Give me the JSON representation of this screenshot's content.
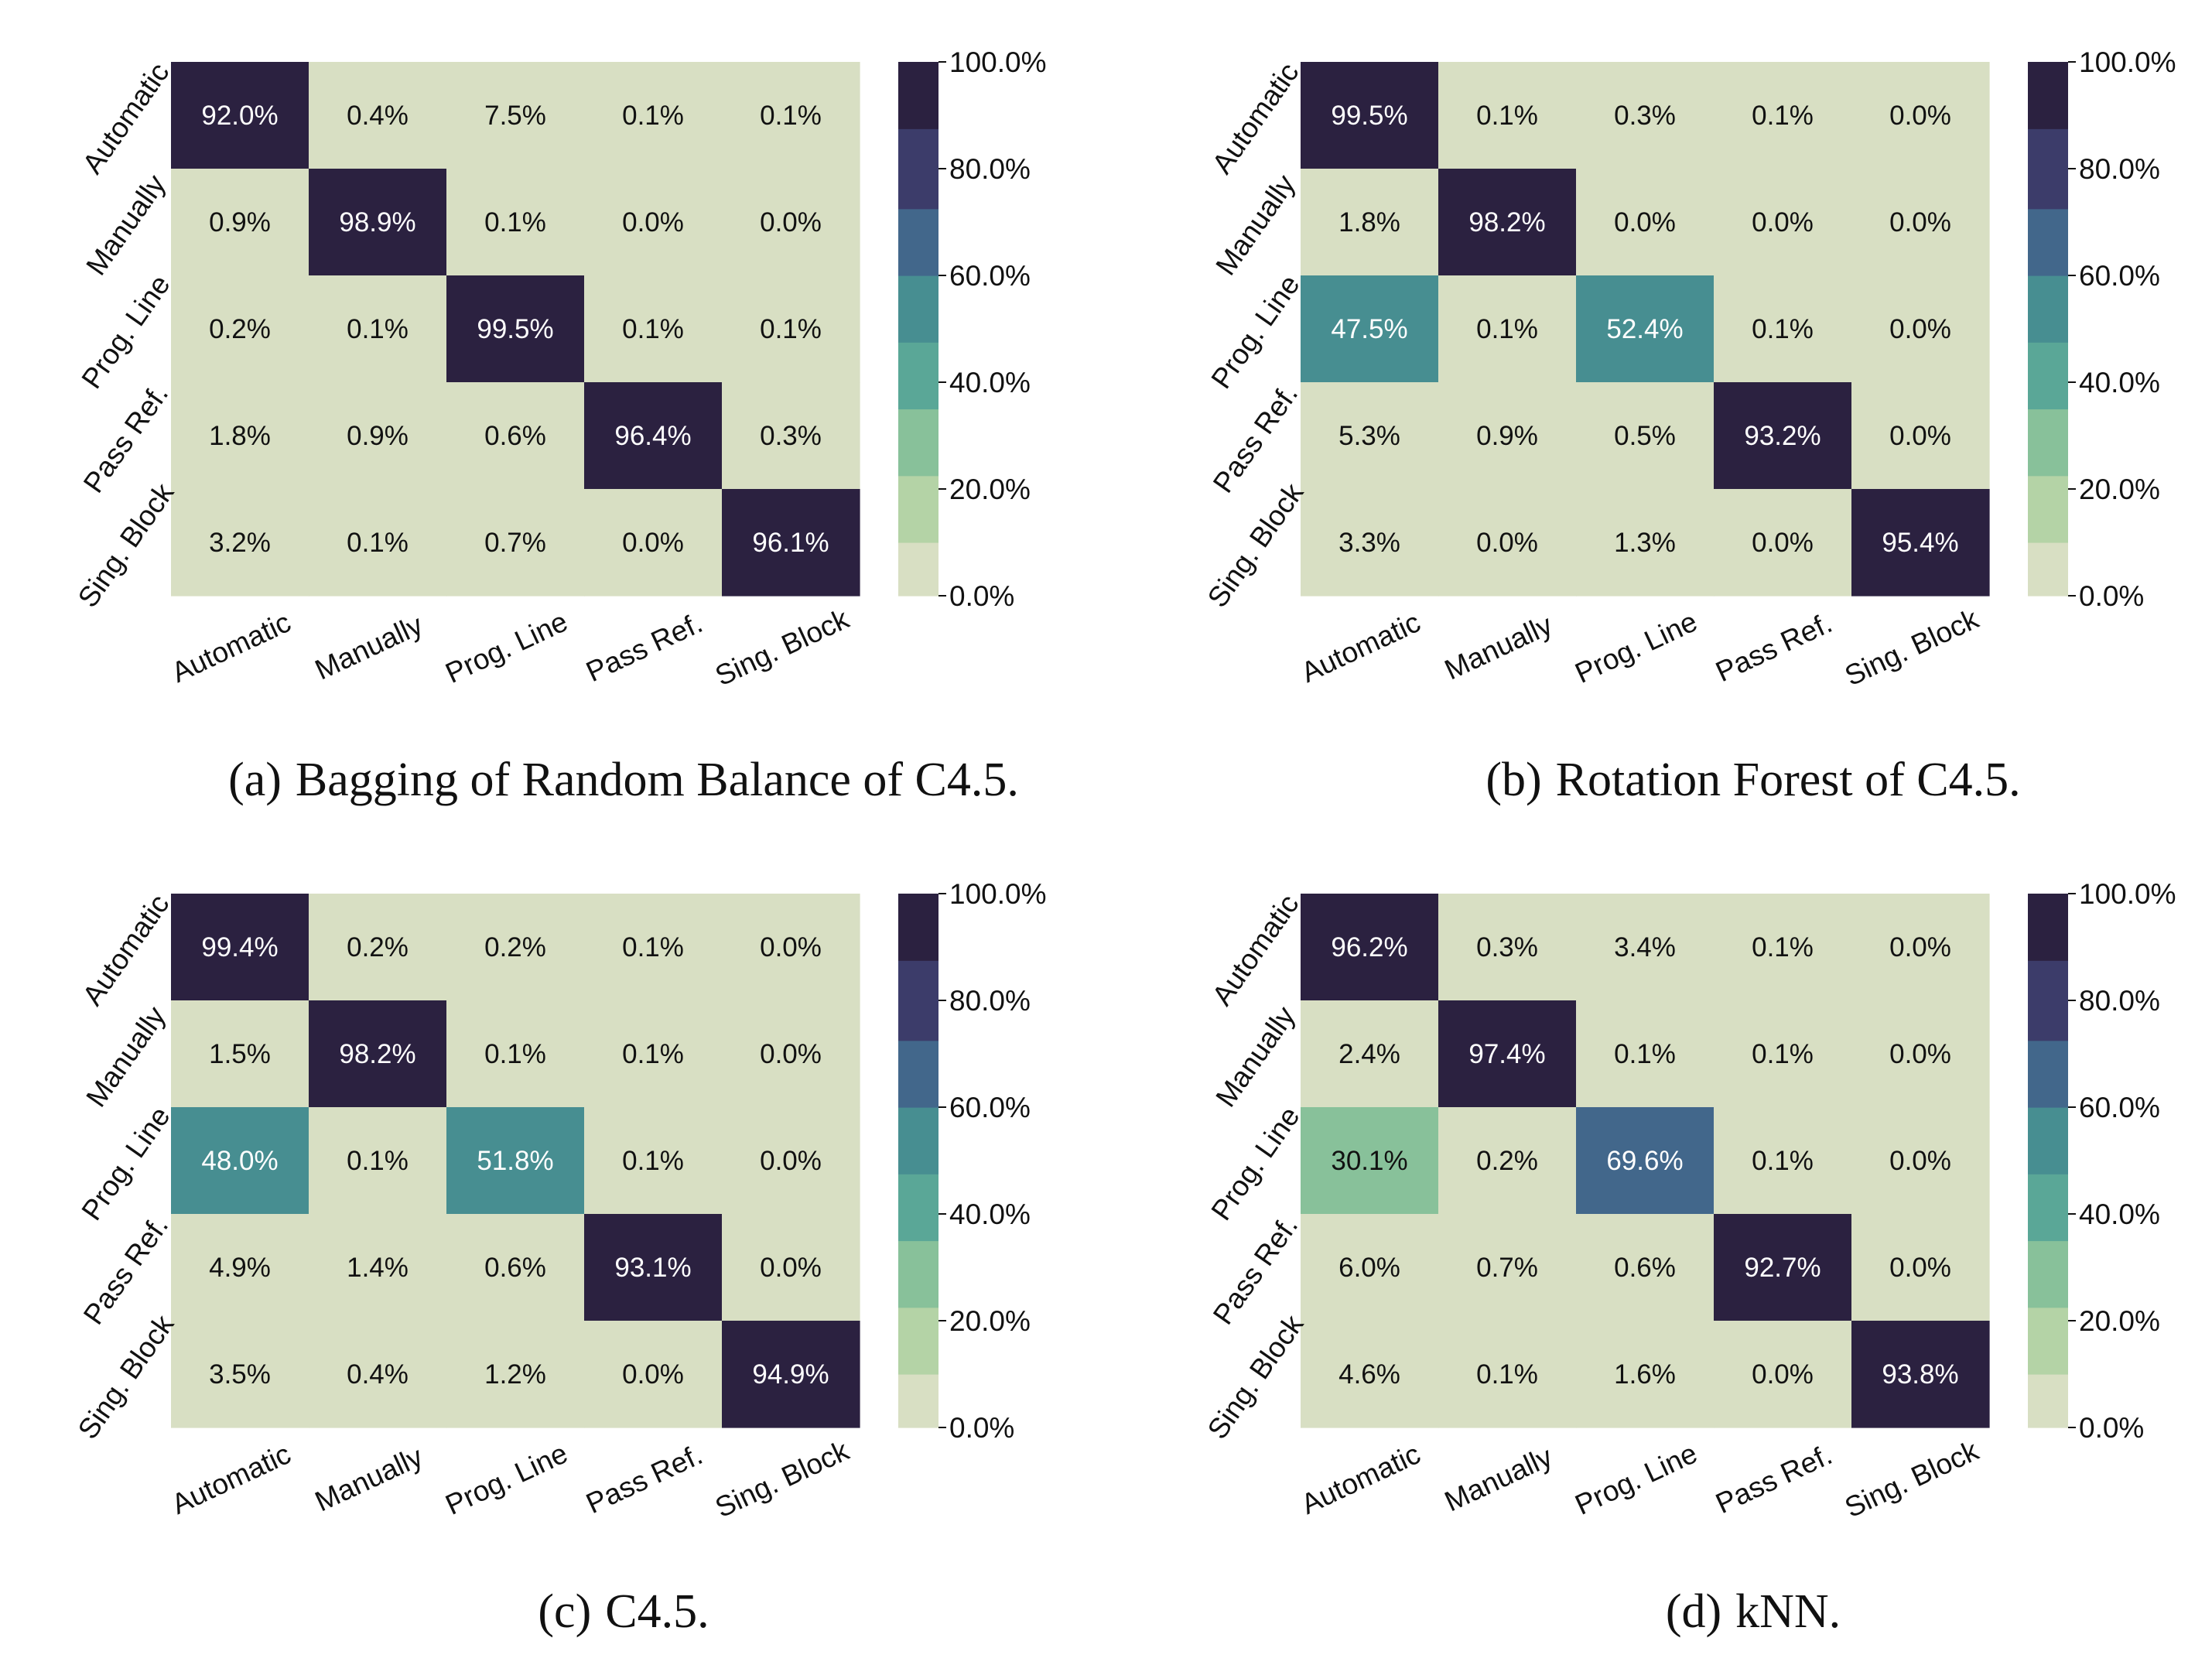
{
  "chart_data": [
    {
      "type": "heatmap",
      "caption_label": "(a)",
      "caption": "Bagging of Random Balance of C4.5.",
      "row_labels": [
        "Automatic",
        "Manually",
        "Prog. Line",
        "Pass Ref.",
        "Sing. Block"
      ],
      "col_labels": [
        "Automatic",
        "Manually",
        "Prog. Line",
        "Pass Ref.",
        "Sing. Block"
      ],
      "values": [
        [
          92.0,
          0.4,
          7.5,
          0.1,
          0.1
        ],
        [
          0.9,
          98.9,
          0.1,
          0.0,
          0.0
        ],
        [
          0.2,
          0.1,
          99.5,
          0.1,
          0.1
        ],
        [
          1.8,
          0.9,
          0.6,
          96.4,
          0.3
        ],
        [
          3.2,
          0.1,
          0.7,
          0.0,
          96.1
        ]
      ],
      "colorbar_ticks": [
        "0.0%",
        "20.0%",
        "40.0%",
        "60.0%",
        "80.0%",
        "100.0%"
      ],
      "vmin": 0,
      "vmax": 100
    },
    {
      "type": "heatmap",
      "caption_label": "(b)",
      "caption": "Rotation Forest of C4.5.",
      "row_labels": [
        "Automatic",
        "Manually",
        "Prog. Line",
        "Pass Ref.",
        "Sing. Block"
      ],
      "col_labels": [
        "Automatic",
        "Manually",
        "Prog. Line",
        "Pass Ref.",
        "Sing. Block"
      ],
      "values": [
        [
          99.5,
          0.1,
          0.3,
          0.1,
          0.0
        ],
        [
          1.8,
          98.2,
          0.0,
          0.0,
          0.0
        ],
        [
          47.5,
          0.1,
          52.4,
          0.1,
          0.0
        ],
        [
          5.3,
          0.9,
          0.5,
          93.2,
          0.0
        ],
        [
          3.3,
          0.0,
          1.3,
          0.0,
          95.4
        ]
      ],
      "colorbar_ticks": [
        "0.0%",
        "20.0%",
        "40.0%",
        "60.0%",
        "80.0%",
        "100.0%"
      ],
      "vmin": 0,
      "vmax": 100
    },
    {
      "type": "heatmap",
      "caption_label": "(c)",
      "caption": "C4.5.",
      "row_labels": [
        "Automatic",
        "Manually",
        "Prog. Line",
        "Pass Ref.",
        "Sing. Block"
      ],
      "col_labels": [
        "Automatic",
        "Manually",
        "Prog. Line",
        "Pass Ref.",
        "Sing. Block"
      ],
      "values": [
        [
          99.4,
          0.2,
          0.2,
          0.1,
          0.0
        ],
        [
          1.5,
          98.2,
          0.1,
          0.1,
          0.0
        ],
        [
          48.0,
          0.1,
          51.8,
          0.1,
          0.0
        ],
        [
          4.9,
          1.4,
          0.6,
          93.1,
          0.0
        ],
        [
          3.5,
          0.4,
          1.2,
          0.0,
          94.9
        ]
      ],
      "colorbar_ticks": [
        "0.0%",
        "20.0%",
        "40.0%",
        "60.0%",
        "80.0%",
        "100.0%"
      ],
      "vmin": 0,
      "vmax": 100
    },
    {
      "type": "heatmap",
      "caption_label": "(d)",
      "caption": "kNN.",
      "row_labels": [
        "Automatic",
        "Manually",
        "Prog. Line",
        "Pass Ref.",
        "Sing. Block"
      ],
      "col_labels": [
        "Automatic",
        "Manually",
        "Prog. Line",
        "Pass Ref.",
        "Sing. Block"
      ],
      "values": [
        [
          96.2,
          0.3,
          3.4,
          0.1,
          0.0
        ],
        [
          2.4,
          97.4,
          0.1,
          0.1,
          0.0
        ],
        [
          30.1,
          0.2,
          69.6,
          0.1,
          0.0
        ],
        [
          6.0,
          0.7,
          0.6,
          92.7,
          0.0
        ],
        [
          4.6,
          0.1,
          1.6,
          0.0,
          93.8
        ]
      ],
      "colorbar_ticks": [
        "0.0%",
        "20.0%",
        "40.0%",
        "60.0%",
        "80.0%",
        "100.0%"
      ],
      "vmin": 0,
      "vmax": 100
    }
  ],
  "colors": {
    "scale": [
      "#d8dfc3",
      "#b4d3a6",
      "#88c19a",
      "#5aa797",
      "#478e91",
      "#42678b",
      "#3c3c6a",
      "#2b2140"
    ],
    "text_dark": "#111111",
    "text_light": "#ffffff"
  }
}
